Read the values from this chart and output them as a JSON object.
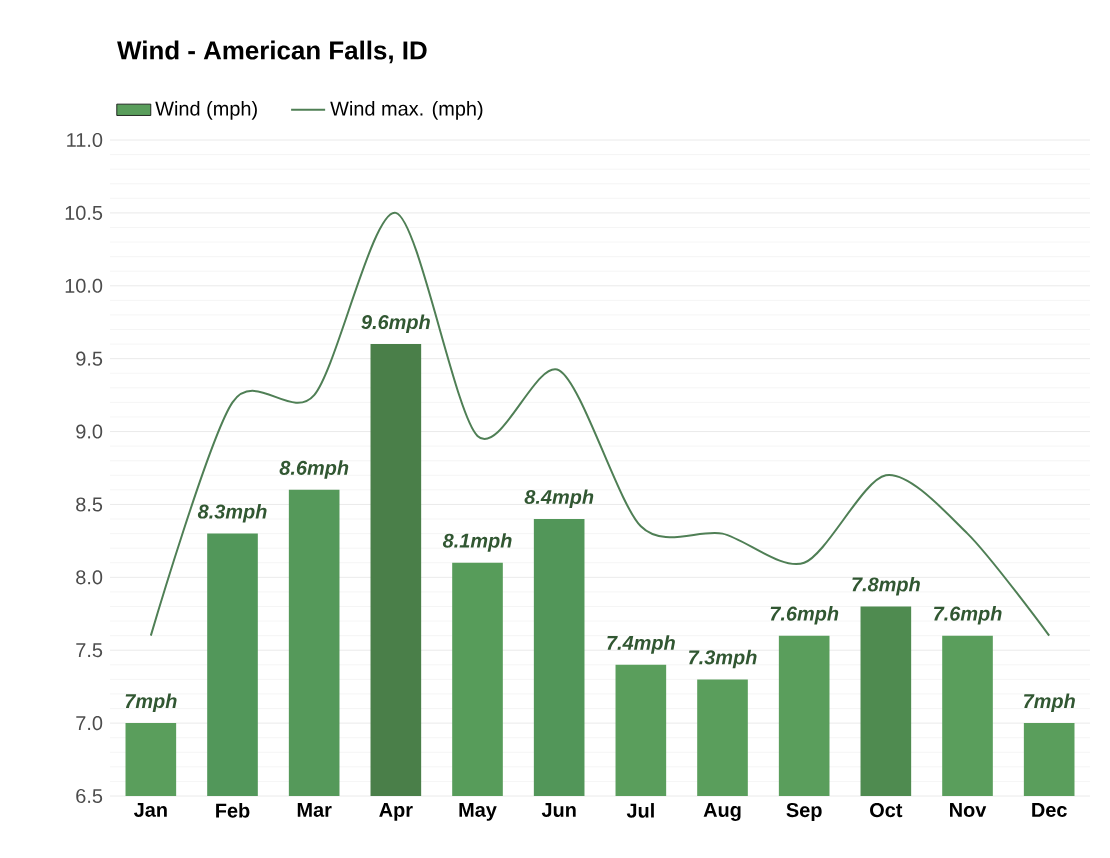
{
  "chart_data": {
    "type": "bar",
    "title": "Wind - American Falls, ID",
    "categories": [
      "Jan",
      "Feb",
      "Mar",
      "Apr",
      "May",
      "Jun",
      "Jul",
      "Aug",
      "Sep",
      "Oct",
      "Nov",
      "Dec"
    ],
    "series": [
      {
        "name": "Wind (mph)",
        "color": "#5a9e5c",
        "colors": [
          "#5a9e5c",
          "#52975a",
          "#55995a",
          "#4a7f49",
          "#579c5a",
          "#529659",
          "#5a9e5c",
          "#5a9e5c",
          "#5a9e5c",
          "#4f8b50",
          "#5a9e5c",
          "#5a9e5c"
        ],
        "values": [
          7,
          8.3,
          8.6,
          9.6,
          8.1,
          8.4,
          7.4,
          7.3,
          7.6,
          7.8,
          7.6,
          7
        ],
        "value_labels": [
          "7mph",
          "8.3mph",
          "8.6mph",
          "9.6mph",
          "8.1mph",
          "8.4mph",
          "7.4mph",
          "7.3mph",
          "7.6mph",
          "7.8mph",
          "7.6mph",
          "7mph"
        ]
      },
      {
        "name": "Wind max. (mph)",
        "type": "line",
        "color": "#4f7f55",
        "values": [
          7.6,
          9.2,
          9.25,
          10.5,
          8.97,
          9.42,
          8.35,
          8.3,
          8.1,
          8.7,
          8.3,
          7.6
        ]
      }
    ],
    "ylim": [
      6.5,
      11.0
    ],
    "yticks": [
      {
        "value": 6.5,
        "label": "6.5"
      },
      {
        "value": 7.0,
        "label": "7.0"
      },
      {
        "value": 7.5,
        "label": "7.5"
      },
      {
        "value": 8.0,
        "label": "8.0"
      },
      {
        "value": 8.5,
        "label": "8.5"
      },
      {
        "value": 9.0,
        "label": "9.0"
      },
      {
        "value": 9.5,
        "label": "9.5"
      },
      {
        "value": 10.0,
        "label": "10.0"
      },
      {
        "value": 10.5,
        "label": "10.5"
      },
      {
        "value": 11.0,
        "label": "11.0"
      }
    ],
    "grid": "y",
    "legend": "top left"
  }
}
